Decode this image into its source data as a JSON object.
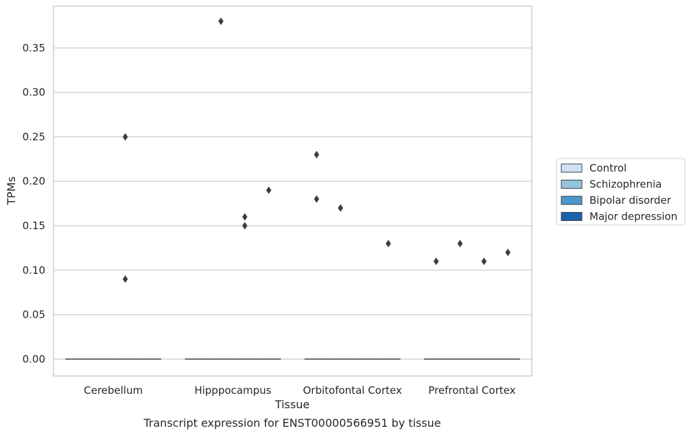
{
  "chart_data": {
    "type": "box",
    "title": "",
    "caption": "Transcript expression for ENST00000566951 by tissue",
    "xlabel": "Tissue",
    "ylabel": "TPMs",
    "ylim": [
      -0.019,
      0.397
    ],
    "yticks": [
      0.0,
      0.05,
      0.1,
      0.15,
      0.2,
      0.25,
      0.3,
      0.35
    ],
    "ytick_labels": [
      "0.00",
      "0.05",
      "0.10",
      "0.15",
      "0.20",
      "0.25",
      "0.30",
      "0.35"
    ],
    "grid": "horizontal",
    "legend_position": "right",
    "categories": [
      "Cerebellum",
      "Hipppocampus",
      "Orbitofontal Cortex",
      "Prefrontal Cortex"
    ],
    "series": [
      {
        "name": "Control",
        "color": "#d0e1f2",
        "boxes": [
          {
            "q1": 0,
            "median": 0,
            "q3": 0,
            "whislo": 0,
            "whishi": 0,
            "fliers": []
          },
          {
            "q1": 0,
            "median": 0,
            "q3": 0,
            "whislo": 0,
            "whishi": 0,
            "fliers": []
          },
          {
            "q1": 0,
            "median": 0,
            "q3": 0,
            "whislo": 0,
            "whishi": 0,
            "fliers": [
              0.23,
              0.18
            ]
          },
          {
            "q1": 0,
            "median": 0,
            "q3": 0,
            "whislo": 0,
            "whishi": 0,
            "fliers": [
              0.11
            ]
          }
        ]
      },
      {
        "name": "Schizophrenia",
        "color": "#94c4df",
        "boxes": [
          {
            "q1": 0,
            "median": 0,
            "q3": 0,
            "whislo": 0,
            "whishi": 0,
            "fliers": []
          },
          {
            "q1": 0,
            "median": 0,
            "q3": 0,
            "whislo": 0,
            "whishi": 0,
            "fliers": [
              0.38
            ]
          },
          {
            "q1": 0,
            "median": 0,
            "q3": 0,
            "whislo": 0,
            "whishi": 0,
            "fliers": [
              0.17
            ]
          },
          {
            "q1": 0,
            "median": 0,
            "q3": 0,
            "whislo": 0,
            "whishi": 0,
            "fliers": [
              0.13
            ]
          }
        ]
      },
      {
        "name": "Bipolar disorder",
        "color": "#4a98c9",
        "boxes": [
          {
            "q1": 0,
            "median": 0,
            "q3": 0,
            "whislo": 0,
            "whishi": 0,
            "fliers": [
              0.25,
              0.09
            ]
          },
          {
            "q1": 0,
            "median": 0,
            "q3": 0,
            "whislo": 0,
            "whishi": 0,
            "fliers": [
              0.16,
              0.15
            ]
          },
          {
            "q1": 0,
            "median": 0,
            "q3": 0,
            "whislo": 0,
            "whishi": 0,
            "fliers": []
          },
          {
            "q1": 0,
            "median": 0,
            "q3": 0,
            "whislo": 0,
            "whishi": 0,
            "fliers": [
              0.11
            ]
          }
        ]
      },
      {
        "name": "Major depression",
        "color": "#1764ab",
        "boxes": [
          {
            "q1": 0,
            "median": 0,
            "q3": 0,
            "whislo": 0,
            "whishi": 0,
            "fliers": []
          },
          {
            "q1": 0,
            "median": 0,
            "q3": 0,
            "whislo": 0,
            "whishi": 0,
            "fliers": [
              0.19
            ]
          },
          {
            "q1": 0,
            "median": 0,
            "q3": 0,
            "whislo": 0,
            "whishi": 0,
            "fliers": [
              0.13
            ]
          },
          {
            "q1": 0,
            "median": 0,
            "q3": 0,
            "whislo": 0,
            "whishi": 0,
            "fliers": [
              0.12
            ]
          }
        ]
      }
    ],
    "colors": {
      "grid": "#cccccc",
      "frame": "#cccccc",
      "flier": "#3d3d3d",
      "box_edge": "#3d3d3d"
    }
  }
}
